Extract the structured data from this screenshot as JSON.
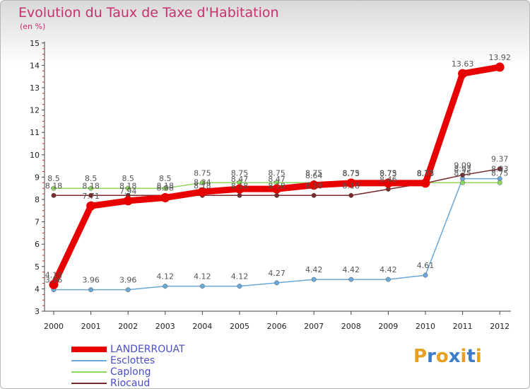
{
  "title": "Evolution du Taux de Taxe d'Habitation",
  "subtitle": "(en %)",
  "logo": {
    "text": "Proxiti",
    "colors": [
      "#e8a020",
      "#3b7bc8",
      "#e8a020",
      "#3b7bc8",
      "#e8a020",
      "#3b7bc8",
      "#e8a020"
    ]
  },
  "chart_data": {
    "type": "line",
    "x": [
      "2000",
      "2001",
      "2002",
      "2003",
      "2004",
      "2005",
      "2006",
      "2007",
      "2008",
      "2009",
      "2010",
      "2011",
      "2012"
    ],
    "ylim": [
      3,
      15
    ],
    "yticks": [
      "3",
      "4",
      "5",
      "6",
      "7",
      "8",
      "9",
      "10",
      "11",
      "12",
      "13",
      "14",
      "15"
    ],
    "series": [
      {
        "name": "LANDERROUAT",
        "color": "#e80000",
        "values": [
          4.19,
          7.71,
          7.94,
          8.08,
          8.34,
          8.47,
          8.47,
          8.64,
          8.73,
          8.73,
          8.73,
          13.63,
          13.92
        ],
        "labels": [
          "4.19",
          "7.71",
          "7.94",
          "8.08",
          "8.34",
          "8.47",
          "8.47",
          "8.64",
          "8.73",
          "8.73",
          "8.73",
          "13.63",
          "13.92"
        ]
      },
      {
        "name": "Esclottes",
        "color": "#6aa8d8",
        "values": [
          3.96,
          3.96,
          3.96,
          4.12,
          4.12,
          4.12,
          4.27,
          4.42,
          4.42,
          4.42,
          4.61,
          8.93,
          8.93
        ],
        "labels": [
          "3.96",
          "3.96",
          "3.96",
          "4.12",
          "4.12",
          "4.12",
          "4.27",
          "4.42",
          "4.42",
          "4.42",
          "4.61",
          "8.93",
          "8.93"
        ]
      },
      {
        "name": "Caplong",
        "color": "#8ed860",
        "values": [
          8.5,
          8.5,
          8.5,
          8.5,
          8.75,
          8.75,
          8.75,
          8.75,
          8.75,
          8.75,
          8.75,
          8.75,
          8.75
        ],
        "labels": [
          "8.5",
          "8.5",
          "8.5",
          "8.5",
          "8.75",
          "8.75",
          "8.75",
          "8.75",
          "8.75",
          "8.75",
          "8.75",
          "8.75",
          "8.75"
        ]
      },
      {
        "name": "Riocaud",
        "color": "#7a2a2a",
        "values": [
          8.18,
          8.18,
          8.18,
          8.18,
          8.18,
          8.18,
          8.18,
          8.18,
          8.18,
          8.46,
          8.73,
          9.09,
          9.37
        ],
        "labels": [
          "8.18",
          "8.18",
          "8.18",
          "8.18",
          "8.18",
          "8.18",
          "8.18",
          "8.18",
          "8.18",
          "8.46",
          "8.73",
          "9.09",
          "9.37"
        ]
      }
    ],
    "legend": "bottom-left",
    "grid": false
  }
}
